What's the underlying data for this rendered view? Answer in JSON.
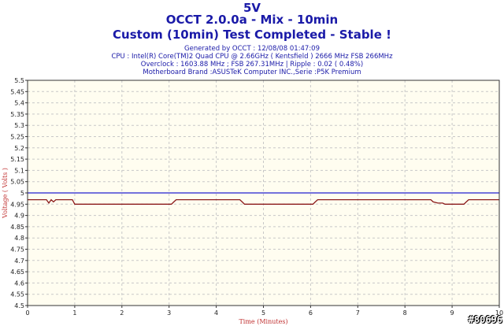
{
  "header": {
    "line1": "5V",
    "line2": "OCCT 2.0.0a - Mix - 10min",
    "line3": "Custom (10min) Test Completed - Stable !",
    "generated": "Generated by OCCT : 12/08/08 01:47:09",
    "cpu": "CPU : Intel(R) Core(TM)2 Quad CPU @ 2.66GHz ( Kentsfield ) 2666 MHz FSB 266MHz",
    "overclock": "Overclock : 1603.88 MHz ; FSB 267.31MHz | Ripple : 0.02 ( 0.48%)",
    "motherboard": "Motherboard Brand :ASUSTeK Computer INC.,Serie :P5K Premium"
  },
  "watermark": "#80696",
  "colors": {
    "title": "#1a1aa8",
    "plot_bg": "#fffdf0",
    "grid": "#c8c8c8",
    "reference_line": "#2020d0",
    "series": "#8b1a1a"
  },
  "chart_data": {
    "type": "line",
    "xlabel": "Time (Minutes)",
    "ylabel": "Voltage ( Volts )",
    "xlim": [
      0,
      10
    ],
    "ylim": [
      4.5,
      5.5
    ],
    "x_ticks": [
      0,
      1,
      2,
      3,
      4,
      5,
      6,
      7,
      8,
      9,
      10
    ],
    "y_ticks": [
      4.5,
      4.55,
      4.6,
      4.65,
      4.7,
      4.75,
      4.8,
      4.85,
      4.9,
      4.95,
      5,
      5.05,
      5.1,
      5.15,
      5.2,
      5.25,
      5.3,
      5.35,
      5.4,
      5.45,
      5.5
    ],
    "y_tick_labels": [
      "4.5",
      "4.55",
      "4.6",
      "4.65",
      "4.7",
      "4.75",
      "4.8",
      "4.85",
      "4.9",
      "4.95",
      "5",
      "5.05",
      "5.1",
      "5.15",
      "5.2",
      "5.25",
      "5.3",
      "5.35",
      "5.4",
      "5.45",
      "5.5"
    ],
    "grid": true,
    "reference": {
      "y": 5.0
    },
    "series": [
      {
        "x": [
          0,
          0.4,
          0.45,
          0.5,
          0.55,
          0.6,
          0.65,
          0.95,
          1.0,
          3.05,
          3.1,
          3.15,
          4.5,
          4.55,
          4.6,
          6.05,
          6.1,
          6.15,
          8.55,
          8.6,
          8.7,
          8.8,
          8.85,
          9.25,
          9.3,
          9.35,
          10.0
        ],
        "y": [
          4.97,
          4.97,
          4.955,
          4.97,
          4.96,
          4.97,
          4.97,
          4.97,
          4.95,
          4.95,
          4.96,
          4.97,
          4.97,
          4.96,
          4.95,
          4.95,
          4.96,
          4.97,
          4.97,
          4.96,
          4.955,
          4.955,
          4.95,
          4.95,
          4.96,
          4.97,
          4.97
        ]
      }
    ]
  }
}
